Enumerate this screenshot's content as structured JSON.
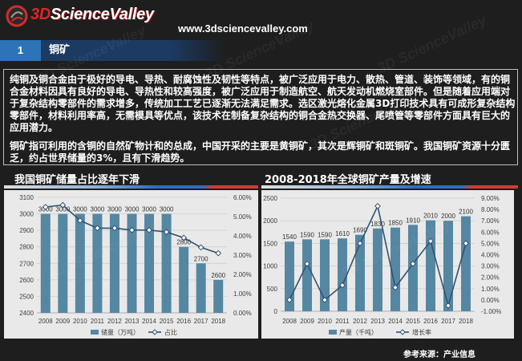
{
  "logo": {
    "mark": "3D",
    "name": "ScienceValley"
  },
  "header": {
    "url": "www.3dsciencevalley.com"
  },
  "section": {
    "number": "1",
    "title": "铜矿"
  },
  "watermark": "3D ScienceValley",
  "intro": {
    "paragraphs": [
      {
        "lines": [
          "纯铜及铜合金由于极好的导电、导热、耐腐蚀性及韧性等特点，被广泛应用于电力、散热、管道、装饰等领域，有的铜",
          "合金材料因具有良好的导电、导热性和较高强度，被广泛应用于制造航空、航天发动机燃烧室部件。但是随着应用端对",
          "于复杂结构零部件的需求增多，传统加工工艺已逐渐无法满足需求。选区激光熔化金属3D打印技术具有可成形复杂结构",
          "零部件，材料利用率高，无需模具等优点，该技术在制备复杂结构的铜合金热交换器、尾喷管等零部件方面具有巨大的",
          "应用潜力。"
        ]
      },
      {
        "lines": [
          "铜矿指可利用的含铜的自然矿物计和的总成，中国开采的主要是黄铜矿，其次是辉铜矿和斑铜矿。我国铜矿资源十分匮",
          "乏，约占世界储量的3%，且有下滑趋势。"
        ]
      }
    ]
  },
  "footer": {
    "source": "参考来源：产业信息"
  },
  "colors": {
    "background": "#1e1e1e",
    "section_number": "#2d73b8",
    "section_title": "#1c3b63",
    "bar": "#5587a3",
    "line": "#33536f",
    "accent_blue": "#2b6cc4",
    "accent_red": "#d63a32"
  },
  "chart_data": [
    {
      "type": "bar",
      "title": "我国铜矿储量占比逐年下滑",
      "categories": [
        "2008",
        "2009",
        "2010",
        "2011",
        "2012",
        "2013",
        "2014",
        "2015",
        "2016",
        "2017",
        "2018"
      ],
      "series": [
        {
          "name": "储量（万吨）",
          "type": "bar",
          "axis": "left",
          "data_labels": true,
          "values": [
            3000,
            3000,
            3000,
            3000,
            3000,
            3000,
            3000,
            3000,
            2800,
            2700,
            2600
          ]
        },
        {
          "name": "占比",
          "type": "line",
          "axis": "right",
          "unit": "%",
          "values": [
            5.5,
            5.6,
            4.8,
            4.4,
            4.4,
            4.3,
            4.3,
            4.2,
            3.9,
            3.4,
            3.1
          ]
        }
      ],
      "y_left": {
        "min": 2400,
        "max": 3100,
        "step": 100
      },
      "y_right": {
        "min": 0,
        "max": 6,
        "step": 1,
        "unit": "%"
      },
      "xlabel": "",
      "ylabel": "",
      "grid": true,
      "legend": "bottom"
    },
    {
      "type": "bar",
      "title": "2008-2018年全球铜矿产量及增速",
      "categories": [
        "2008",
        "2009",
        "2010",
        "2011",
        "2012",
        "2013",
        "2014",
        "2015",
        "2016",
        "2017",
        "2018"
      ],
      "series": [
        {
          "name": "产量（千吨）",
          "type": "bar",
          "axis": "left",
          "data_labels": true,
          "values": [
            1540,
            1590,
            1590,
            1610,
            1690,
            1830,
            1850,
            1910,
            2010,
            2000,
            2100
          ]
        },
        {
          "name": "增长率",
          "type": "line",
          "axis": "right",
          "unit": "%",
          "values": [
            0.0,
            3.2,
            0.0,
            1.3,
            5.0,
            8.3,
            1.1,
            3.2,
            5.2,
            -0.5,
            5.0
          ]
        }
      ],
      "y_left": {
        "min": 0,
        "max": 2500,
        "step": 500
      },
      "y_right": {
        "min": -1,
        "max": 9,
        "step": 1,
        "unit": "%"
      },
      "xlabel": "",
      "ylabel": "",
      "grid": true,
      "legend": "bottom"
    }
  ]
}
